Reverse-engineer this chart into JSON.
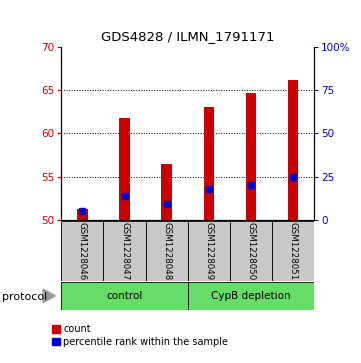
{
  "title": "GDS4828 / ILMN_1791171",
  "samples": [
    "GSM1228046",
    "GSM1228047",
    "GSM1228048",
    "GSM1228049",
    "GSM1228050",
    "GSM1228051"
  ],
  "counts": [
    51.2,
    61.8,
    56.5,
    63.1,
    64.7,
    66.2
  ],
  "percentile_ranks": [
    51.0,
    52.7,
    51.8,
    53.5,
    54.0,
    55.0
  ],
  "baseline": 50,
  "ylim_left": [
    50,
    70
  ],
  "ylim_right": [
    0,
    100
  ],
  "yticks_left": [
    50,
    55,
    60,
    65,
    70
  ],
  "yticks_right": [
    0,
    25,
    50,
    75,
    100
  ],
  "groups": [
    {
      "label": "control",
      "color": "#7CFC00"
    },
    {
      "label": "CypB depletion",
      "color": "#7CFC00"
    }
  ],
  "bar_color": "#CC0000",
  "percentile_color": "#0000CC",
  "bar_width": 0.25,
  "label_box_color": "#C8C8C8",
  "protocol_label": "protocol",
  "legend_count": "count",
  "legend_percentile": "percentile rank within the sample",
  "left_tick_color": "#CC0000",
  "right_tick_color": "#0000CC",
  "grid_lines": [
    55,
    60,
    65
  ],
  "green_color": "#66DD66"
}
